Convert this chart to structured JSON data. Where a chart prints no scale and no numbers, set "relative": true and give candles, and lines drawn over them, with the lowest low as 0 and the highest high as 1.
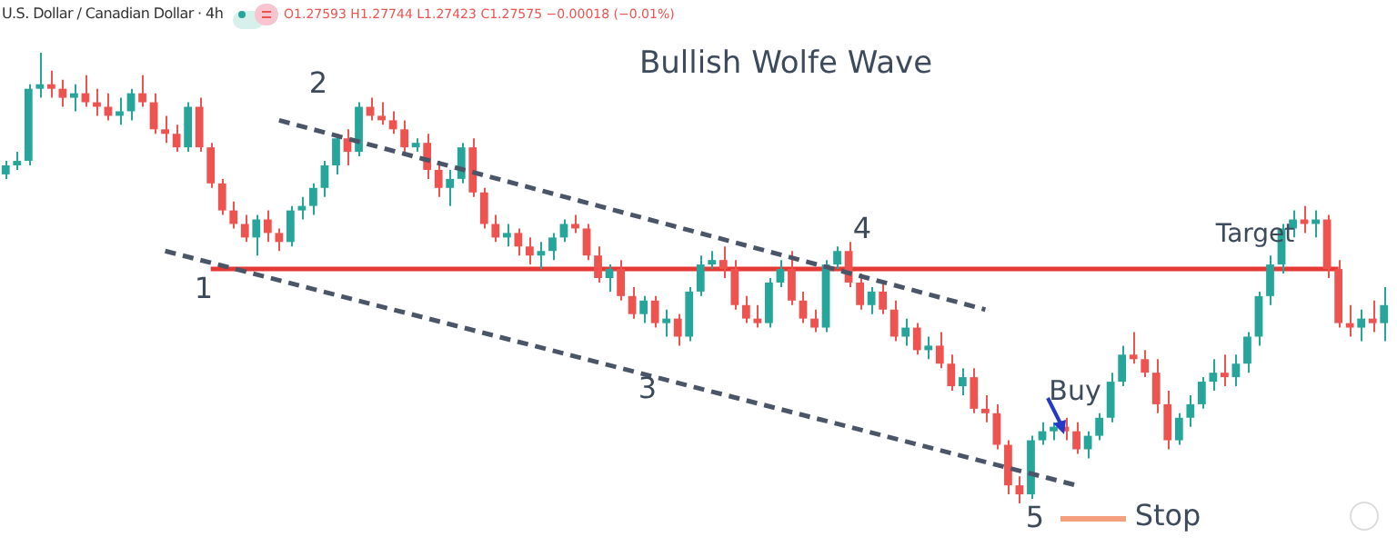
{
  "chart_data": {
    "type": "candlestick",
    "title": "Bullish Wolfe Wave",
    "subtitle": "U.S. Dollar / Canadian Dollar · 4h",
    "relative": true,
    "tick_labels": false,
    "legend": false,
    "annotations": [
      "1",
      "2",
      "3",
      "4",
      "5",
      "Buy",
      "Stop",
      "O1.27593 H1.27744 L1.27423 C1.27575 −0.00018 (−0.01%)"
    ],
    "categories": [
      null,
      null,
      null,
      null,
      null,
      null,
      null,
      null,
      null,
      null,
      null,
      null,
      null,
      null,
      null,
      null,
      null,
      null,
      null,
      null,
      null,
      null,
      null,
      null,
      null,
      null,
      null,
      null,
      null,
      null,
      null,
      null,
      null,
      null,
      null,
      null,
      null,
      null,
      null,
      null,
      null,
      null,
      null,
      null,
      null,
      null,
      null,
      null,
      null,
      null,
      null,
      null,
      null,
      null,
      null,
      null,
      null,
      null,
      null,
      null,
      null,
      null,
      null,
      null,
      null,
      null,
      null,
      null,
      null,
      null,
      null,
      null,
      null,
      null,
      null,
      null,
      null,
      null,
      null,
      null,
      null,
      null,
      null,
      null,
      null,
      null,
      null,
      null,
      null,
      null,
      null,
      null,
      null,
      null,
      null,
      null,
      null,
      null,
      null,
      null,
      null,
      null,
      null,
      null,
      null,
      null,
      null,
      null,
      null,
      null,
      null,
      null,
      null,
      null,
      null,
      null,
      null,
      null,
      null,
      null,
      null,
      null
    ],
    "ohlc": [
      [
        0.73,
        0.76,
        0.72,
        0.75
      ],
      [
        0.75,
        0.78,
        0.74,
        0.76
      ],
      [
        0.76,
        0.93,
        0.75,
        0.92
      ],
      [
        0.92,
        1.0,
        0.9,
        0.93
      ],
      [
        0.93,
        0.96,
        0.9,
        0.92
      ],
      [
        0.92,
        0.94,
        0.88,
        0.9
      ],
      [
        0.9,
        0.93,
        0.87,
        0.91
      ],
      [
        0.91,
        0.95,
        0.88,
        0.89
      ],
      [
        0.89,
        0.92,
        0.86,
        0.88
      ],
      [
        0.88,
        0.91,
        0.85,
        0.86
      ],
      [
        0.86,
        0.9,
        0.84,
        0.87
      ],
      [
        0.87,
        0.92,
        0.85,
        0.91
      ],
      [
        0.91,
        0.95,
        0.88,
        0.89
      ],
      [
        0.89,
        0.91,
        0.82,
        0.83
      ],
      [
        0.83,
        0.86,
        0.8,
        0.82
      ],
      [
        0.82,
        0.84,
        0.78,
        0.79
      ],
      [
        0.79,
        0.89,
        0.78,
        0.88
      ],
      [
        0.88,
        0.9,
        0.78,
        0.79
      ],
      [
        0.79,
        0.8,
        0.7,
        0.71
      ],
      [
        0.71,
        0.72,
        0.64,
        0.65
      ],
      [
        0.65,
        0.67,
        0.61,
        0.62
      ],
      [
        0.62,
        0.64,
        0.58,
        0.59
      ],
      [
        0.59,
        0.64,
        0.55,
        0.63
      ],
      [
        0.63,
        0.65,
        0.58,
        0.6
      ],
      [
        0.6,
        0.61,
        0.56,
        0.58
      ],
      [
        0.58,
        0.66,
        0.57,
        0.65
      ],
      [
        0.65,
        0.68,
        0.63,
        0.66
      ],
      [
        0.66,
        0.71,
        0.64,
        0.7
      ],
      [
        0.7,
        0.76,
        0.68,
        0.75
      ],
      [
        0.75,
        0.82,
        0.73,
        0.81
      ],
      [
        0.81,
        0.83,
        0.75,
        0.78
      ],
      [
        0.78,
        0.89,
        0.77,
        0.88
      ],
      [
        0.88,
        0.9,
        0.85,
        0.86
      ],
      [
        0.86,
        0.89,
        0.84,
        0.85
      ],
      [
        0.85,
        0.87,
        0.82,
        0.83
      ],
      [
        0.83,
        0.85,
        0.77,
        0.79
      ],
      [
        0.79,
        0.81,
        0.78,
        0.8
      ],
      [
        0.8,
        0.82,
        0.72,
        0.74
      ],
      [
        0.74,
        0.76,
        0.68,
        0.7
      ],
      [
        0.7,
        0.74,
        0.66,
        0.72
      ],
      [
        0.72,
        0.8,
        0.71,
        0.79
      ],
      [
        0.79,
        0.81,
        0.68,
        0.69
      ],
      [
        0.69,
        0.7,
        0.61,
        0.62
      ],
      [
        0.62,
        0.64,
        0.58,
        0.59
      ],
      [
        0.59,
        0.62,
        0.57,
        0.6
      ],
      [
        0.6,
        0.61,
        0.55,
        0.57
      ],
      [
        0.57,
        0.59,
        0.53,
        0.55
      ],
      [
        0.55,
        0.58,
        0.52,
        0.56
      ],
      [
        0.56,
        0.6,
        0.54,
        0.59
      ],
      [
        0.59,
        0.63,
        0.58,
        0.62
      ],
      [
        0.62,
        0.64,
        0.6,
        0.61
      ],
      [
        0.61,
        0.62,
        0.54,
        0.55
      ],
      [
        0.55,
        0.57,
        0.49,
        0.5
      ],
      [
        0.5,
        0.53,
        0.47,
        0.52
      ],
      [
        0.52,
        0.54,
        0.45,
        0.46
      ],
      [
        0.46,
        0.48,
        0.41,
        0.42
      ],
      [
        0.42,
        0.46,
        0.4,
        0.45
      ],
      [
        0.45,
        0.46,
        0.39,
        0.4
      ],
      [
        0.4,
        0.43,
        0.37,
        0.41
      ],
      [
        0.41,
        0.42,
        0.35,
        0.37
      ],
      [
        0.37,
        0.48,
        0.36,
        0.47
      ],
      [
        0.47,
        0.55,
        0.46,
        0.53
      ],
      [
        0.53,
        0.56,
        0.52,
        0.54
      ],
      [
        0.54,
        0.57,
        0.5,
        0.52
      ],
      [
        0.52,
        0.54,
        0.43,
        0.44
      ],
      [
        0.44,
        0.46,
        0.4,
        0.41
      ],
      [
        0.41,
        0.44,
        0.39,
        0.4
      ],
      [
        0.4,
        0.5,
        0.39,
        0.49
      ],
      [
        0.49,
        0.54,
        0.48,
        0.52
      ],
      [
        0.52,
        0.56,
        0.44,
        0.45
      ],
      [
        0.45,
        0.47,
        0.4,
        0.41
      ],
      [
        0.41,
        0.43,
        0.38,
        0.39
      ],
      [
        0.39,
        0.54,
        0.38,
        0.53
      ],
      [
        0.53,
        0.57,
        0.52,
        0.56
      ],
      [
        0.56,
        0.58,
        0.48,
        0.49
      ],
      [
        0.49,
        0.51,
        0.43,
        0.44
      ],
      [
        0.44,
        0.48,
        0.42,
        0.47
      ],
      [
        0.47,
        0.49,
        0.42,
        0.43
      ],
      [
        0.43,
        0.45,
        0.36,
        0.37
      ],
      [
        0.37,
        0.41,
        0.35,
        0.39
      ],
      [
        0.39,
        0.4,
        0.33,
        0.34
      ],
      [
        0.34,
        0.37,
        0.32,
        0.35
      ],
      [
        0.35,
        0.38,
        0.3,
        0.31
      ],
      [
        0.31,
        0.33,
        0.25,
        0.26
      ],
      [
        0.26,
        0.3,
        0.24,
        0.28
      ],
      [
        0.28,
        0.3,
        0.2,
        0.21
      ],
      [
        0.21,
        0.24,
        0.18,
        0.2
      ],
      [
        0.2,
        0.22,
        0.12,
        0.13
      ],
      [
        0.13,
        0.14,
        0.02,
        0.04
      ],
      [
        0.04,
        0.06,
        0,
        0.02
      ],
      [
        0.02,
        0.15,
        0.01,
        0.14
      ],
      [
        0.14,
        0.18,
        0.13,
        0.16
      ],
      [
        0.16,
        0.18,
        0.14,
        0.17
      ],
      [
        0.17,
        0.19,
        0.14,
        0.16
      ],
      [
        0.16,
        0.18,
        0.11,
        0.12
      ],
      [
        0.12,
        0.16,
        0.1,
        0.15
      ],
      [
        0.15,
        0.2,
        0.14,
        0.19
      ],
      [
        0.19,
        0.29,
        0.18,
        0.27
      ],
      [
        0.27,
        0.35,
        0.26,
        0.33
      ],
      [
        0.33,
        0.38,
        0.31,
        0.32
      ],
      [
        0.32,
        0.34,
        0.28,
        0.29
      ],
      [
        0.29,
        0.32,
        0.2,
        0.22
      ],
      [
        0.22,
        0.25,
        0.12,
        0.14
      ],
      [
        0.14,
        0.2,
        0.13,
        0.19
      ],
      [
        0.19,
        0.24,
        0.17,
        0.22
      ],
      [
        0.22,
        0.28,
        0.21,
        0.27
      ],
      [
        0.27,
        0.32,
        0.25,
        0.29
      ],
      [
        0.29,
        0.33,
        0.26,
        0.28
      ],
      [
        0.28,
        0.33,
        0.26,
        0.31
      ],
      [
        0.31,
        0.38,
        0.29,
        0.37
      ],
      [
        0.37,
        0.47,
        0.35,
        0.46
      ],
      [
        0.46,
        0.55,
        0.44,
        0.53
      ],
      [
        0.53,
        0.62,
        0.51,
        0.61
      ],
      [
        0.61,
        0.65,
        0.59,
        0.63
      ],
      [
        0.63,
        0.66,
        0.6,
        0.62
      ],
      [
        0.62,
        0.65,
        0.59,
        0.63
      ],
      [
        0.63,
        0.64,
        0.5,
        0.52
      ],
      [
        0.52,
        0.54,
        0.39,
        0.4
      ],
      [
        0.4,
        0.44,
        0.37,
        0.39
      ],
      [
        0.39,
        0.43,
        0.36,
        0.41
      ],
      [
        0.41,
        0.45,
        0.38,
        0.4
      ],
      [
        0.4,
        0.48,
        0.36,
        0.44
      ]
    ],
    "colors": [
      "#26a69a",
      "#26a69a",
      "#26a69a",
      "#26a69a",
      "#ef5350",
      "#ef5350",
      "#26a69a",
      "#ef5350",
      "#ef5350",
      "#ef5350",
      "#26a69a",
      "#26a69a",
      "#ef5350",
      "#ef5350",
      "#ef5350",
      "#ef5350",
      "#26a69a",
      "#ef5350",
      "#ef5350",
      "#ef5350",
      "#ef5350",
      "#ef5350",
      "#26a69a",
      "#ef5350",
      "#ef5350",
      "#26a69a",
      "#26a69a",
      "#26a69a",
      "#26a69a",
      "#26a69a",
      "#ef5350",
      "#26a69a",
      "#ef5350",
      "#ef5350",
      "#ef5350",
      "#ef5350",
      "#26a69a",
      "#ef5350",
      "#ef5350",
      "#26a69a",
      "#26a69a",
      "#ef5350",
      "#ef5350",
      "#ef5350",
      "#26a69a",
      "#ef5350",
      "#ef5350",
      "#26a69a",
      "#26a69a",
      "#26a69a",
      "#ef5350",
      "#ef5350",
      "#ef5350",
      "#26a69a",
      "#ef5350",
      "#ef5350",
      "#26a69a",
      "#ef5350",
      "#26a69a",
      "#ef5350",
      "#26a69a",
      "#26a69a",
      "#26a69a",
      "#ef5350",
      "#ef5350",
      "#ef5350",
      "#ef5350",
      "#26a69a",
      "#26a69a",
      "#ef5350",
      "#ef5350",
      "#ef5350",
      "#26a69a",
      "#26a69a",
      "#ef5350",
      "#ef5350",
      "#26a69a",
      "#ef5350",
      "#ef5350",
      "#26a69a",
      "#ef5350",
      "#26a69a",
      "#ef5350",
      "#ef5350",
      "#26a69a",
      "#ef5350",
      "#ef5350",
      "#ef5350",
      "#ef5350",
      "#ef5350",
      "#26a69a",
      "#26a69a",
      "#26a69a",
      "#ef5350",
      "#ef5350",
      "#26a69a",
      "#26a69a",
      "#26a69a",
      "#26a69a",
      "#ef5350",
      "#ef5350",
      "#ef5350",
      "#ef5350",
      "#26a69a",
      "#26a69a",
      "#26a69a",
      "#26a69a",
      "#ef5350",
      "#26a69a",
      "#26a69a",
      "#26a69a",
      "#26a69a",
      "#26a69a",
      "#26a69a",
      "#ef5350",
      "#26a69a",
      "#ef5350",
      "#ef5350",
      "#ef5350",
      "#26a69a",
      "#ef5350",
      "#26a69a"
    ],
    "series": [
      {
        "type": "line",
        "color": "#4a5568",
        "line_style": "dashed",
        "values": [
          null,
          null,
          null,
          null,
          null,
          null,
          null,
          null,
          null,
          null,
          null,
          null,
          null,
          null,
          null,
          null,
          null,
          null,
          null,
          null,
          null,
          null,
          null,
          null,
          0.85,
          null,
          null,
          null,
          null,
          null,
          null,
          null,
          null,
          null,
          null,
          null,
          null,
          null,
          null,
          null,
          null,
          null,
          null,
          null,
          null,
          null,
          null,
          null,
          null,
          null,
          null,
          null,
          null,
          null,
          null,
          null,
          null,
          null,
          null,
          null,
          null,
          null,
          null,
          null,
          null,
          null,
          null,
          null,
          null,
          null,
          null,
          null,
          null,
          null,
          null,
          null,
          null,
          null,
          null,
          null,
          null,
          null,
          null,
          null,
          null,
          null,
          0.43,
          null,
          null,
          null,
          null,
          null,
          null,
          null,
          null,
          null,
          null,
          null,
          null,
          null,
          null,
          null,
          null,
          null,
          null,
          null,
          null,
          null,
          null,
          null,
          null,
          null,
          null,
          null,
          null,
          null,
          null,
          null,
          null,
          null,
          null,
          null
        ]
      },
      {
        "type": "line",
        "color": "#4a5568",
        "line_style": "dashed",
        "values": [
          null,
          null,
          null,
          null,
          null,
          null,
          null,
          null,
          null,
          null,
          null,
          null,
          null,
          null,
          0.56,
          null,
          null,
          null,
          null,
          null,
          null,
          null,
          null,
          null,
          null,
          null,
          null,
          null,
          null,
          null,
          null,
          null,
          null,
          null,
          null,
          null,
          null,
          null,
          null,
          null,
          null,
          null,
          null,
          null,
          null,
          null,
          null,
          null,
          null,
          null,
          null,
          null,
          null,
          null,
          null,
          null,
          null,
          null,
          null,
          null,
          null,
          null,
          null,
          null,
          null,
          null,
          null,
          null,
          null,
          null,
          null,
          null,
          null,
          null,
          null,
          null,
          null,
          null,
          null,
          null,
          null,
          null,
          null,
          null,
          null,
          null,
          null,
          null,
          null,
          null,
          null,
          null,
          null,
          null,
          0.04,
          null,
          null,
          null,
          null,
          null,
          null,
          null,
          null,
          null,
          null,
          null,
          null,
          null,
          null,
          null,
          null,
          null,
          null,
          null,
          null,
          null,
          null,
          null,
          null,
          null,
          null,
          null
        ]
      }
    ],
    "ref_lines": [
      {
        "axis": "y",
        "value": 0.52,
        "label": "Target",
        "color": "#e53935"
      }
    ]
  }
}
